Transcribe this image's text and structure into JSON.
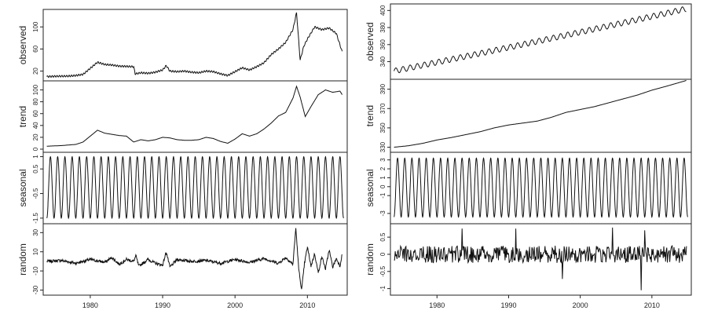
{
  "chart_data": [
    {
      "type": "line",
      "title": "",
      "xlabel": "",
      "x_ticks": [
        1980,
        1990,
        2000,
        2010
      ],
      "x_range": [
        1973.5,
        2015.5
      ],
      "panels": [
        {
          "name": "observed",
          "ylabel": "observed",
          "ylim": [
            8,
            126
          ],
          "yticks": [
            20,
            60,
            100
          ],
          "points": [
            [
              1974,
              10
            ],
            [
              1975,
              10.5
            ],
            [
              1976,
              10.8
            ],
            [
              1977,
              11
            ],
            [
              1978,
              12
            ],
            [
              1979,
              14
            ],
            [
              1980,
              25
            ],
            [
              1981,
              36
            ],
            [
              1981.5,
              34
            ],
            [
              1982,
              32
            ],
            [
              1983,
              31
            ],
            [
              1984,
              29
            ],
            [
              1985,
              28.5
            ],
            [
              1986,
              28
            ],
            [
              1986.2,
              15
            ],
            [
              1987,
              17
            ],
            [
              1988,
              16
            ],
            [
              1989,
              18
            ],
            [
              1990,
              22
            ],
            [
              1990.5,
              30
            ],
            [
              1991,
              20
            ],
            [
              1992,
              19
            ],
            [
              1993,
              20
            ],
            [
              1994,
              18
            ],
            [
              1995,
              17
            ],
            [
              1996,
              20
            ],
            [
              1997,
              19
            ],
            [
              1998,
              15
            ],
            [
              1999,
              12
            ],
            [
              2000,
              19
            ],
            [
              2001,
              26
            ],
            [
              2002,
              22
            ],
            [
              2003,
              28
            ],
            [
              2004,
              35
            ],
            [
              2005,
              50
            ],
            [
              2006,
              60
            ],
            [
              2007,
              72
            ],
            [
              2008,
              95
            ],
            [
              2008.5,
              126
            ],
            [
              2009,
              40
            ],
            [
              2009.5,
              65
            ],
            [
              2010,
              78
            ],
            [
              2011,
              100
            ],
            [
              2012,
              95
            ],
            [
              2013,
              98
            ],
            [
              2014,
              88
            ],
            [
              2014.8,
              55
            ]
          ]
        },
        {
          "name": "trend",
          "ylabel": "trend",
          "ylim": [
            0,
            110
          ],
          "yticks": [
            0,
            20,
            40,
            60,
            80,
            100
          ],
          "points": [
            [
              1974,
              5
            ],
            [
              1976,
              6
            ],
            [
              1978,
              8
            ],
            [
              1979,
              12
            ],
            [
              1980,
              22
            ],
            [
              1981,
              32
            ],
            [
              1982,
              27
            ],
            [
              1983,
              25
            ],
            [
              1984,
              23
            ],
            [
              1985,
              22
            ],
            [
              1986,
              12
            ],
            [
              1987,
              16
            ],
            [
              1988,
              14
            ],
            [
              1989,
              16
            ],
            [
              1990,
              20
            ],
            [
              1991,
              19
            ],
            [
              1992,
              16
            ],
            [
              1993,
              15
            ],
            [
              1994,
              15
            ],
            [
              1995,
              16
            ],
            [
              1996,
              20
            ],
            [
              1997,
              18
            ],
            [
              1998,
              13
            ],
            [
              1999,
              10
            ],
            [
              2000,
              17
            ],
            [
              2001,
              26
            ],
            [
              2002,
              22
            ],
            [
              2003,
              26
            ],
            [
              2004,
              34
            ],
            [
              2005,
              44
            ],
            [
              2006,
              56
            ],
            [
              2007,
              62
            ],
            [
              2008,
              86
            ],
            [
              2008.5,
              106
            ],
            [
              2009,
              88
            ],
            [
              2009.7,
              55
            ],
            [
              2010.5,
              72
            ],
            [
              2011.5,
              92
            ],
            [
              2012.5,
              100
            ],
            [
              2013.5,
              96
            ],
            [
              2014.5,
              98
            ],
            [
              2014.8,
              92
            ]
          ]
        },
        {
          "name": "seasonal",
          "ylabel": "seasonal",
          "ylim": [
            -1.6,
            1.05
          ],
          "yticks": [
            -1.5,
            -0.5,
            0.5,
            1.0
          ],
          "seasonal": {
            "start": 1974,
            "end": 2015,
            "amplitude_max": 1.0,
            "amplitude_min": -1.5
          }
        },
        {
          "name": "random",
          "ylabel": "random",
          "ylim": [
            -32,
            36
          ],
          "yticks": [
            -30,
            -10,
            10,
            30
          ],
          "points": [
            [
              1974,
              0
            ],
            [
              1976,
              1
            ],
            [
              1978,
              -2
            ],
            [
              1980,
              2
            ],
            [
              1982,
              -1
            ],
            [
              1983,
              4
            ],
            [
              1984,
              -3
            ],
            [
              1985,
              2
            ],
            [
              1986,
              0
            ],
            [
              1986.3,
              6
            ],
            [
              1986.7,
              -5
            ],
            [
              1988,
              2
            ],
            [
              1989,
              -2
            ],
            [
              1990,
              -4
            ],
            [
              1990.5,
              10
            ],
            [
              1991,
              -6
            ],
            [
              1992,
              2
            ],
            [
              1994,
              0
            ],
            [
              1996,
              1
            ],
            [
              1998,
              -2
            ],
            [
              2000,
              2
            ],
            [
              2002,
              -1
            ],
            [
              2004,
              3
            ],
            [
              2006,
              -2
            ],
            [
              2007,
              4
            ],
            [
              2008,
              -3
            ],
            [
              2008.4,
              35
            ],
            [
              2008.8,
              -8
            ],
            [
              2009.2,
              -30
            ],
            [
              2009.6,
              -2
            ],
            [
              2010,
              15
            ],
            [
              2010.5,
              -5
            ],
            [
              2011,
              8
            ],
            [
              2011.5,
              -12
            ],
            [
              2012,
              5
            ],
            [
              2012.5,
              -8
            ],
            [
              2013,
              12
            ],
            [
              2013.5,
              -6
            ],
            [
              2014,
              3
            ],
            [
              2014.5,
              -5
            ],
            [
              2014.8,
              8
            ]
          ]
        }
      ]
    },
    {
      "type": "line",
      "title": "",
      "xlabel": "",
      "x_ticks": [
        1980,
        1990,
        2000,
        2010
      ],
      "x_range": [
        1973.5,
        2015.5
      ],
      "panels": [
        {
          "name": "observed",
          "ylabel": "observed",
          "ylim": [
            323,
            404
          ],
          "yticks": [
            340,
            360,
            380,
            400
          ],
          "trend_from": [
            1974,
            329
          ],
          "trend_to": [
            2014.8,
            398
          ],
          "seasonal_amplitude": 3.2
        },
        {
          "name": "trend",
          "ylabel": "trend",
          "ylim": [
            328,
            397
          ],
          "yticks": [
            330,
            350,
            370,
            390
          ],
          "points": [
            [
              1974,
              330
            ],
            [
              1976,
              331.5
            ],
            [
              1978,
              334
            ],
            [
              1980,
              337.5
            ],
            [
              1982,
              340
            ],
            [
              1984,
              343
            ],
            [
              1986,
              346
            ],
            [
              1988,
              350
            ],
            [
              1990,
              353
            ],
            [
              1992,
              355
            ],
            [
              1994,
              357
            ],
            [
              1996,
              361
            ],
            [
              1998,
              366
            ],
            [
              2000,
              369
            ],
            [
              2002,
              372
            ],
            [
              2004,
              376
            ],
            [
              2006,
              380
            ],
            [
              2008,
              384
            ],
            [
              2010,
              389
            ],
            [
              2012,
              393
            ],
            [
              2014.8,
              399
            ]
          ]
        },
        {
          "name": "seasonal",
          "ylabel": "seasonal",
          "ylim": [
            -3.8,
            3.5
          ],
          "yticks": [
            -3,
            -1,
            0,
            1,
            2,
            3
          ],
          "seasonal": {
            "start": 1974,
            "end": 2015,
            "amplitude_max": 3.2,
            "amplitude_min": -3.4
          }
        },
        {
          "name": "random",
          "ylabel": "random",
          "ylim": [
            -1.1,
            0.8
          ],
          "yticks": [
            -1.0,
            -0.5,
            0.0,
            0.5
          ],
          "noise_scale": 0.25,
          "spikes": [
            [
              1983.5,
              0.75
            ],
            [
              1991,
              0.75
            ],
            [
              1997.5,
              -0.72
            ],
            [
              2004.5,
              0.78
            ],
            [
              2008.5,
              -1.05
            ],
            [
              2009,
              0.7
            ]
          ]
        }
      ]
    }
  ]
}
